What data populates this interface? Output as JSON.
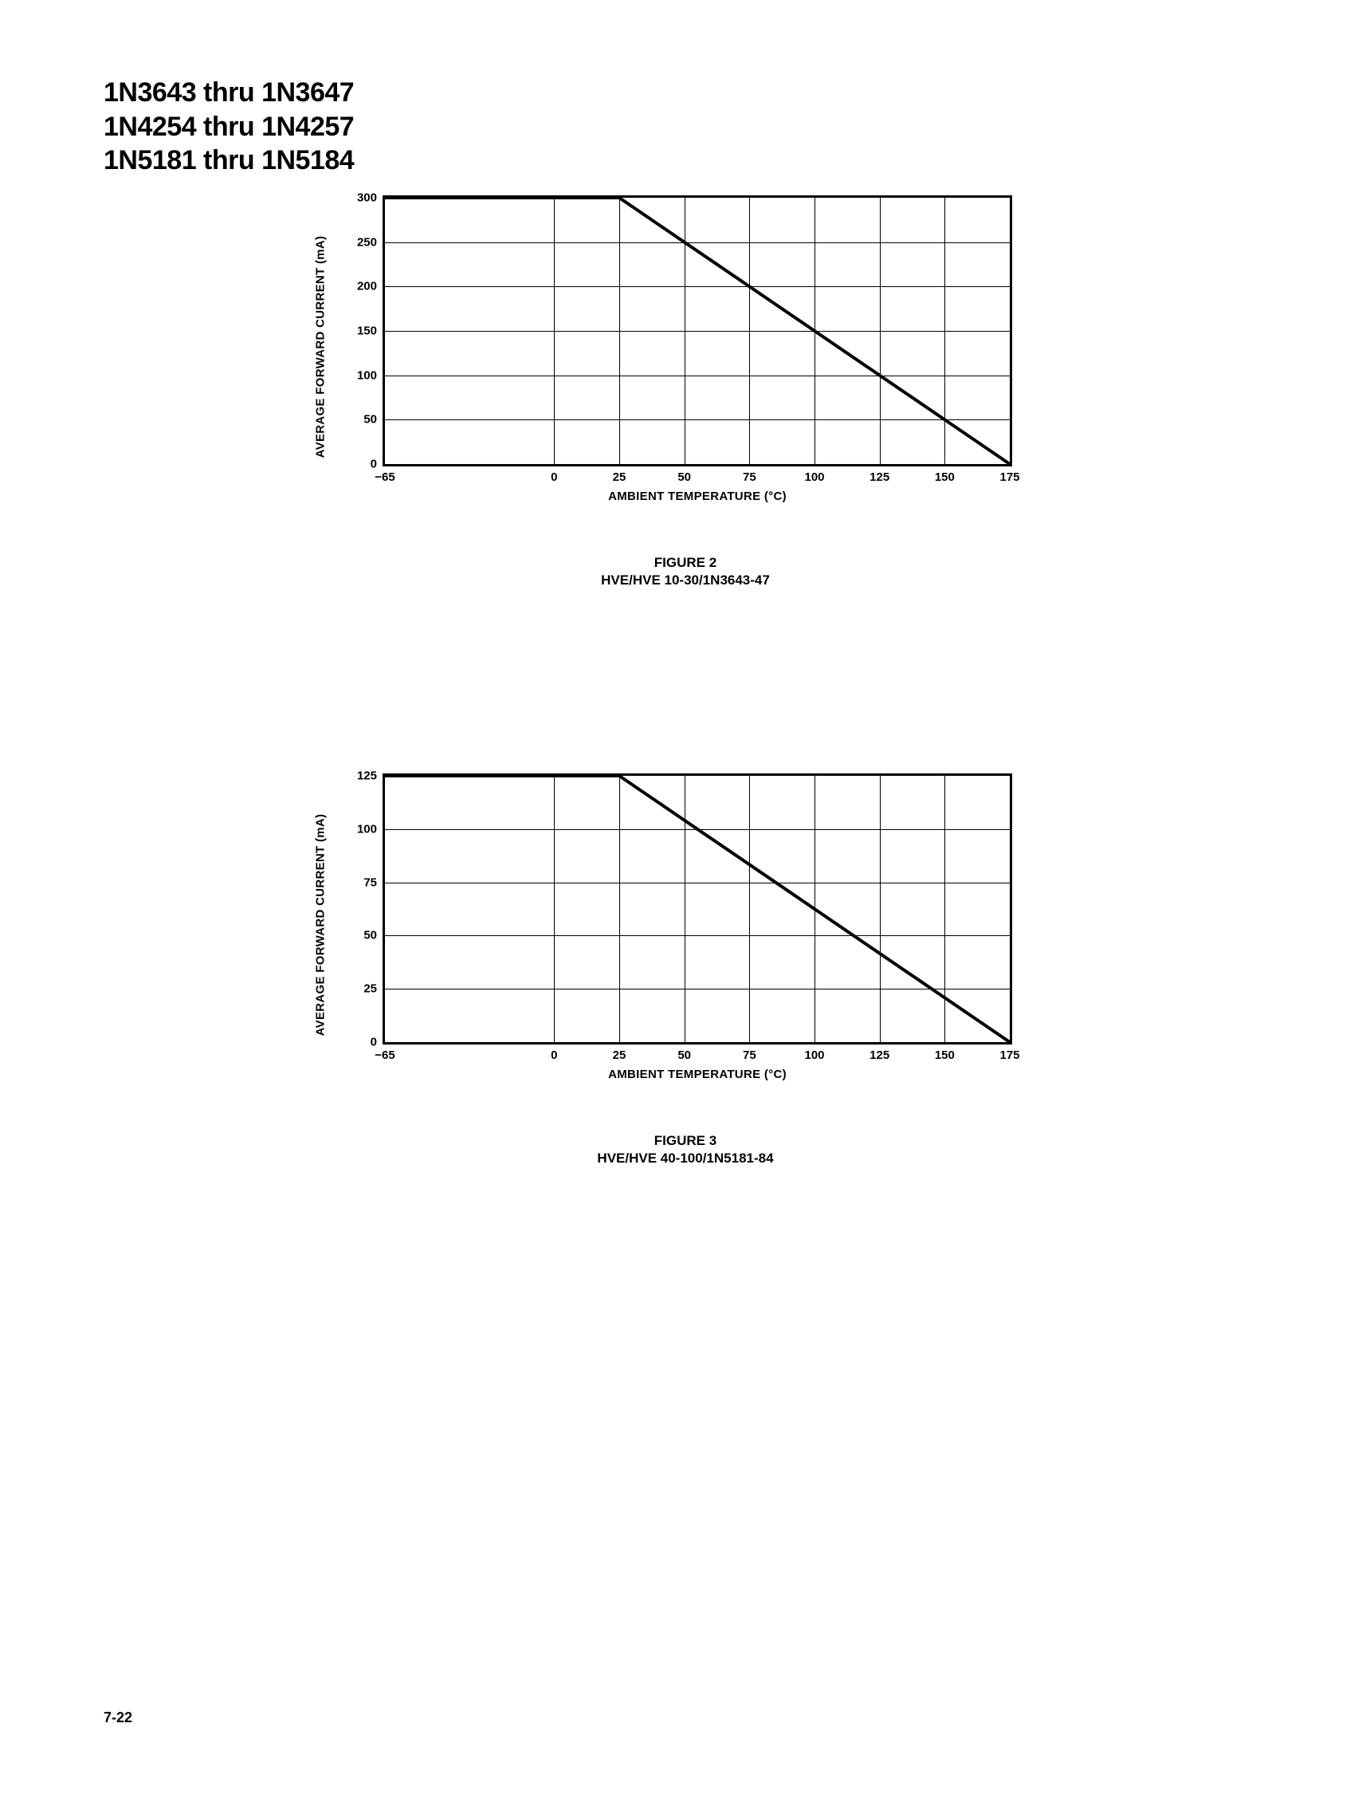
{
  "header": {
    "line1": "1N3643 thru 1N3647",
    "line2": "1N4254 thru 1N4257",
    "line3": "1N5181 thru 1N5184"
  },
  "chart1": {
    "type": "line",
    "ylabel": "AVERAGE FORWARD CURRENT (mA)",
    "xlabel": "AMBIENT TEMPERATURE (°C)",
    "xlim": [
      -65,
      175
    ],
    "ylim": [
      0,
      300
    ],
    "xticks": [
      -65,
      0,
      25,
      50,
      75,
      100,
      125,
      150,
      175
    ],
    "yticks": [
      0,
      50,
      100,
      150,
      200,
      250,
      300
    ],
    "line_start": {
      "x": -65,
      "y": 300
    },
    "line_knee": {
      "x": 25,
      "y": 300
    },
    "line_end": {
      "x": 175,
      "y": 0
    },
    "line_color": "#000000",
    "line_width": 4,
    "grid_color": "#000000",
    "background_color": "#ffffff",
    "tick_fontsize": 15,
    "label_fontsize": 15,
    "caption_line1": "FIGURE 2",
    "caption_line2": "HVE/HVE 10-30/1N3643-47"
  },
  "chart2": {
    "type": "line",
    "ylabel": "AVERAGE FORWARD CURRENT (mA)",
    "xlabel": "AMBIENT TEMPERATURE (°C)",
    "xlim": [
      -65,
      175
    ],
    "ylim": [
      0,
      125
    ],
    "xticks": [
      -65,
      0,
      25,
      50,
      75,
      100,
      125,
      150,
      175
    ],
    "yticks": [
      0,
      25,
      50,
      75,
      100,
      125
    ],
    "line_start": {
      "x": -65,
      "y": 125
    },
    "line_knee": {
      "x": 25,
      "y": 125
    },
    "line_end": {
      "x": 175,
      "y": 0
    },
    "line_color": "#000000",
    "line_width": 4,
    "grid_color": "#000000",
    "background_color": "#ffffff",
    "tick_fontsize": 15,
    "label_fontsize": 15,
    "caption_line1": "FIGURE 3",
    "caption_line2": "HVE/HVE 40-100/1N5181-84"
  },
  "page_number": "7-22"
}
